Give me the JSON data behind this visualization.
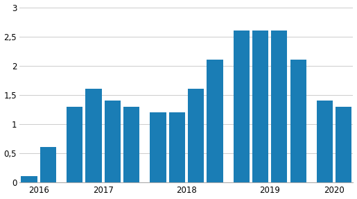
{
  "values": [
    0.1,
    0.6,
    1.3,
    1.6,
    1.4,
    1.3,
    1.2,
    1.2,
    1.6,
    2.1,
    2.6,
    2.6,
    2.6,
    2.1,
    1.4,
    1.3
  ],
  "bar_color": "#1a7db5",
  "ylim": [
    0,
    3
  ],
  "yticks": [
    0,
    0.5,
    1.0,
    1.5,
    2.0,
    2.5,
    3.0
  ],
  "ytick_labels": [
    "0",
    "0,5",
    "1",
    "1,5",
    "2",
    "2,5",
    "3"
  ],
  "year_labels": [
    "2016",
    "2017",
    "2018",
    "2019",
    "2020"
  ],
  "background_color": "#ffffff",
  "grid_color": "#cccccc",
  "bar_groups": [
    2,
    4,
    4,
    4,
    2
  ]
}
